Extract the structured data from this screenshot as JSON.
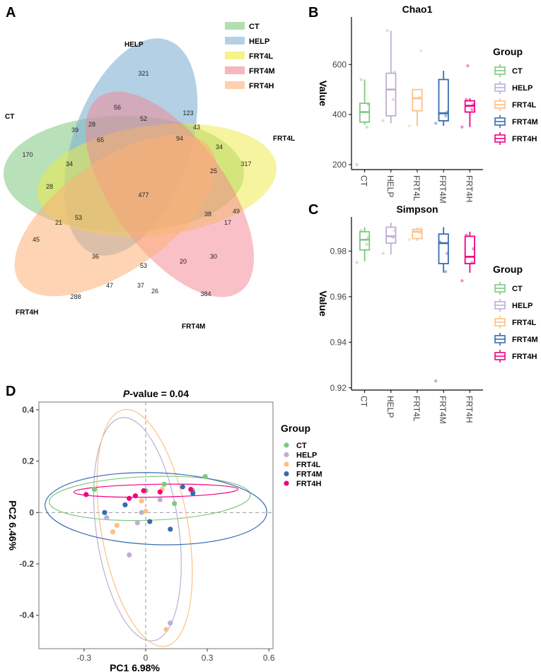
{
  "panels": {
    "A": "A",
    "B": "B",
    "C": "C",
    "D": "D"
  },
  "group_colors": {
    "CT": "#7fc97f",
    "HELP": "#beaed4",
    "FRT4L": "#fdc086",
    "FRT4M": "#386cb0",
    "FRT4H": "#f0027f"
  },
  "venn": {
    "sets": [
      {
        "name": "CT",
        "fill": "#7fc97f"
      },
      {
        "name": "HELP",
        "fill": "#80b1d3"
      },
      {
        "name": "FRT4L",
        "fill": "#f0ea40"
      },
      {
        "name": "FRT4M",
        "fill": "#f4838f"
      },
      {
        "name": "FRT4H",
        "fill": "#fdb077"
      }
    ],
    "numbers": [
      "321",
      "56",
      "52",
      "123",
      "43",
      "39",
      "28",
      "65",
      "94",
      "34",
      "170",
      "34",
      "317",
      "25",
      "28",
      "477",
      "53",
      "38",
      "49",
      "17",
      "21",
      "45",
      "36",
      "53",
      "20",
      "30",
      "288",
      "47",
      "37",
      "26",
      "384"
    ]
  },
  "chart_data": [
    {
      "id": "B",
      "type": "box",
      "title": "Chao1",
      "ylabel": "Value",
      "categories": [
        "CT",
        "HELP",
        "FRT4L",
        "FRT4M",
        "FRT4H"
      ],
      "ylim": [
        180,
        790
      ],
      "yticks": [
        200,
        400,
        600
      ],
      "legend_title": "Group",
      "boxes": [
        {
          "group": "CT",
          "min": 360,
          "q1": 370,
          "median": 410,
          "q3": 445,
          "max": 540
        },
        {
          "group": "HELP",
          "min": 365,
          "q1": 395,
          "median": 500,
          "q3": 565,
          "max": 735
        },
        {
          "group": "FRT4L",
          "min": 355,
          "q1": 415,
          "median": 465,
          "q3": 500,
          "max": 500
        },
        {
          "group": "FRT4M",
          "min": 355,
          "q1": 375,
          "median": 405,
          "q3": 540,
          "max": 575
        },
        {
          "group": "FRT4H",
          "min": 350,
          "q1": 410,
          "median": 435,
          "q3": 455,
          "max": 465
        }
      ],
      "points": [
        {
          "group": "CT",
          "values": [
            200,
            350,
            440,
            540
          ]
        },
        {
          "group": "HELP",
          "values": [
            375,
            460,
            570,
            735
          ]
        },
        {
          "group": "FRT4L",
          "values": [
            355,
            470,
            655
          ]
        },
        {
          "group": "FRT4M",
          "values": [
            365,
            395,
            410
          ]
        },
        {
          "group": "FRT4H",
          "values": [
            350,
            420,
            440,
            460,
            595
          ]
        }
      ]
    },
    {
      "id": "C",
      "type": "box",
      "title": "Simpson",
      "ylabel": "Value",
      "categories": [
        "CT",
        "HELP",
        "FRT4L",
        "FRT4M",
        "FRT4H"
      ],
      "ylim": [
        0.919,
        0.995
      ],
      "yticks": [
        0.92,
        0.94,
        0.96,
        0.98
      ],
      "yticklabels": [
        "0.92",
        "0.94",
        "0.96",
        "0.98"
      ],
      "legend_title": "Group",
      "boxes": [
        {
          "group": "CT",
          "min": 0.9755,
          "q1": 0.9805,
          "median": 0.985,
          "q3": 0.9885,
          "max": 0.9905
        },
        {
          "group": "HELP",
          "min": 0.9785,
          "q1": 0.9835,
          "median": 0.9865,
          "q3": 0.9905,
          "max": 0.9925
        },
        {
          "group": "FRT4L",
          "min": 0.9845,
          "q1": 0.9855,
          "median": 0.9885,
          "q3": 0.9895,
          "max": 0.9905
        },
        {
          "group": "FRT4M",
          "min": 0.9705,
          "q1": 0.9745,
          "median": 0.9835,
          "q3": 0.9875,
          "max": 0.9905
        },
        {
          "group": "FRT4H",
          "min": 0.9705,
          "q1": 0.9745,
          "median": 0.9775,
          "q3": 0.9865,
          "max": 0.9885
        }
      ],
      "points": [
        {
          "group": "CT",
          "values": [
            0.975,
            0.983,
            0.986,
            0.989
          ]
        },
        {
          "group": "HELP",
          "values": [
            0.979,
            0.986,
            0.989
          ]
        },
        {
          "group": "FRT4L",
          "values": [
            0.985,
            0.988,
            0.99
          ]
        },
        {
          "group": "FRT4M",
          "values": [
            0.923,
            0.971,
            0.979,
            0.984
          ]
        },
        {
          "group": "FRT4H",
          "values": [
            0.967,
            0.975,
            0.981,
            0.987
          ]
        }
      ]
    },
    {
      "id": "D",
      "type": "scatter",
      "title": "-value = 0.04",
      "title_prefix": "P",
      "xlabel": "PC1 6.98%",
      "ylabel": "PC2 6.46%",
      "xlim": [
        -0.52,
        0.62
      ],
      "ylim": [
        -0.53,
        0.43
      ],
      "xticks": [
        -0.3,
        0,
        0.3,
        0.6
      ],
      "xticklabels": [
        "-0.3",
        "0",
        "0.3",
        "0.6"
      ],
      "yticks": [
        -0.4,
        -0.2,
        0,
        0.2,
        0.4
      ],
      "yticklabels": [
        "-0.4",
        "-0.2",
        "0",
        "0.2",
        "0.4"
      ],
      "legend_title": "Group",
      "series": [
        {
          "name": "CT",
          "points": [
            [
              -0.25,
              0.09
            ],
            [
              0.0,
              0.085
            ],
            [
              0.09,
              0.11
            ],
            [
              0.29,
              0.14
            ],
            [
              0.14,
              0.035
            ],
            [
              0.23,
              0.085
            ]
          ]
        },
        {
          "name": "HELP",
          "points": [
            [
              -0.19,
              -0.02
            ],
            [
              -0.04,
              -0.04
            ],
            [
              0.07,
              0.05
            ],
            [
              -0.08,
              -0.165
            ],
            [
              0.12,
              -0.43
            ],
            [
              -0.02,
              0.0
            ]
          ]
        },
        {
          "name": "FRT4L",
          "points": [
            [
              -0.16,
              -0.075
            ],
            [
              -0.14,
              -0.05
            ],
            [
              -0.02,
              0.045
            ],
            [
              0.0,
              0.005
            ],
            [
              0.1,
              -0.455
            ],
            [
              0.08,
              0.09
            ]
          ]
        },
        {
          "name": "FRT4M",
          "points": [
            [
              -0.2,
              0.0
            ],
            [
              -0.1,
              0.03
            ],
            [
              0.02,
              -0.035
            ],
            [
              0.12,
              -0.065
            ],
            [
              0.18,
              0.1
            ],
            [
              0.23,
              0.075
            ]
          ]
        },
        {
          "name": "FRT4H",
          "points": [
            [
              -0.29,
              0.07
            ],
            [
              -0.08,
              0.055
            ],
            [
              -0.05,
              0.065
            ],
            [
              -0.01,
              0.085
            ],
            [
              0.07,
              0.08
            ],
            [
              0.22,
              0.09
            ]
          ]
        }
      ],
      "ellipses": [
        {
          "group": "CT",
          "cx": 0.02,
          "cy": 0.055,
          "rx": 0.49,
          "ry": 0.085,
          "angle": 2
        },
        {
          "group": "HELP",
          "cx": -0.04,
          "cy": -0.065,
          "rx": 0.44,
          "ry": 0.2,
          "angle": -82
        },
        {
          "group": "FRT4L",
          "cx": -0.005,
          "cy": -0.06,
          "rx": 0.47,
          "ry": 0.21,
          "angle": -80
        },
        {
          "group": "FRT4M",
          "cx": 0.05,
          "cy": 0.015,
          "rx": 0.54,
          "ry": 0.14,
          "angle": -2
        },
        {
          "group": "FRT4H",
          "cx": 0.05,
          "cy": 0.085,
          "rx": 0.4,
          "ry": 0.025,
          "angle": 1
        }
      ]
    }
  ]
}
